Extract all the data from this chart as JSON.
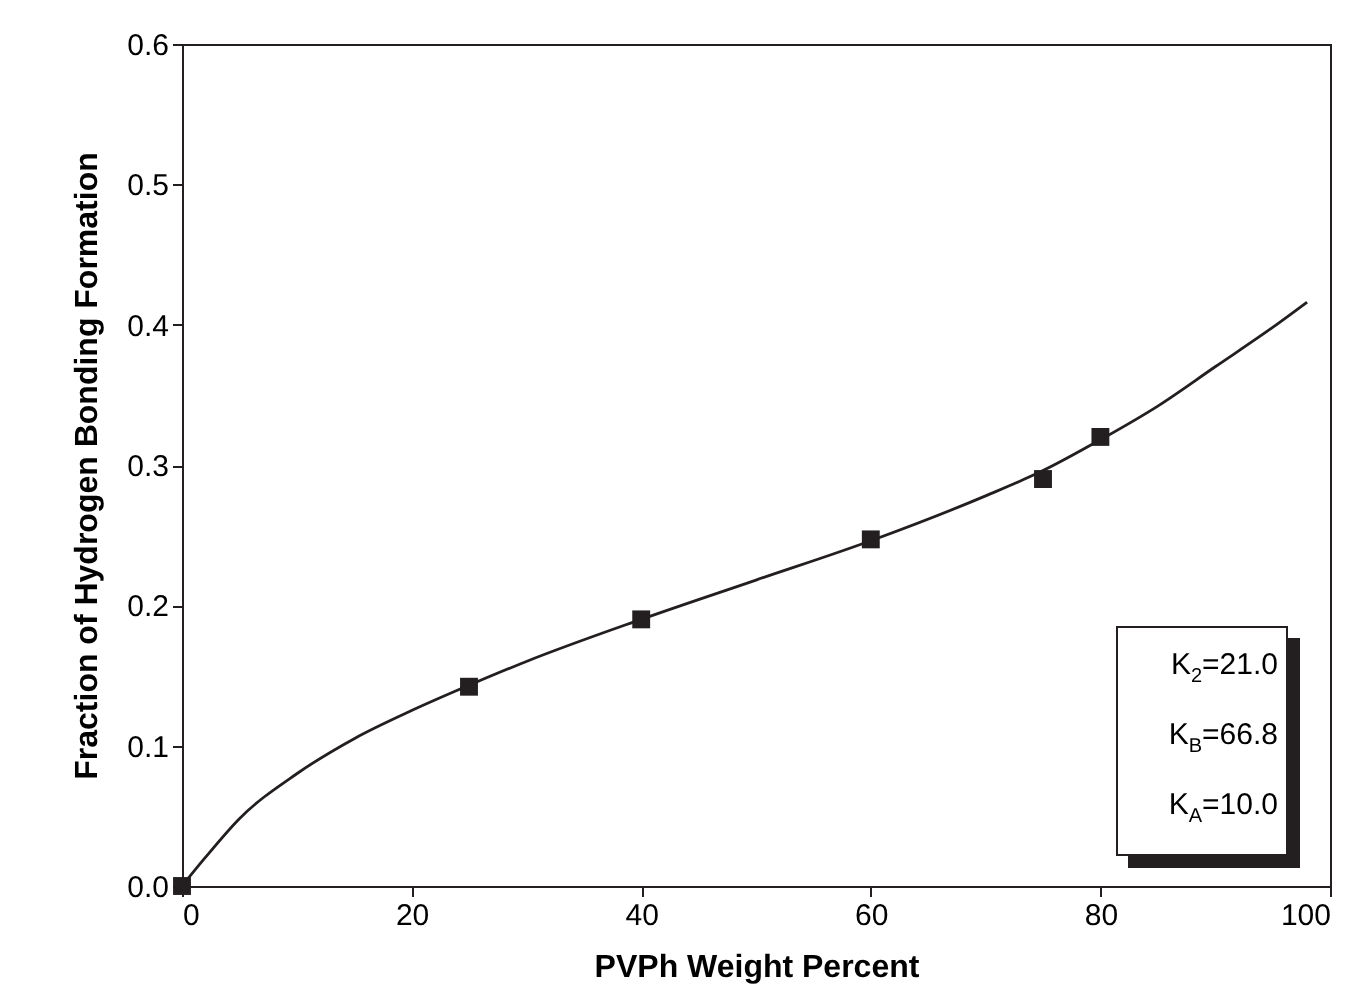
{
  "chart_data": {
    "type": "scatter",
    "xlabel": "PVPh Weight Percent",
    "ylabel": "Fraction of Hydrogen Bonding Formation",
    "xlim": [
      0,
      100
    ],
    "xticks": [
      0,
      20,
      40,
      60,
      80,
      100
    ],
    "ylim": [
      0,
      0.6
    ],
    "yticks": [
      {
        "value": 0,
        "label": "0.0"
      },
      0.1,
      0.2,
      0.3,
      0.4,
      0.5,
      0.6
    ],
    "grid": false,
    "series": [
      {
        "color": "#231f20",
        "marker": "square",
        "x": [
          0,
          25,
          40,
          60,
          75,
          80
        ],
        "values": [
          0,
          0.142,
          0.19,
          0.247,
          0.29,
          0.32
        ]
      },
      {
        "type": "line",
        "color": "#231f20",
        "marker": "none",
        "line_style": "solid",
        "x": [
          0,
          2,
          5,
          10,
          15,
          20,
          25,
          30,
          40,
          50,
          60,
          70,
          75,
          80,
          85,
          90,
          95,
          98
        ],
        "values": [
          0,
          0.02,
          0.048,
          0.08,
          0.105,
          0.125,
          0.143,
          0.16,
          0.19,
          0.218,
          0.246,
          0.278,
          0.296,
          0.318,
          0.342,
          0.37,
          0.398,
          0.416
        ]
      }
    ],
    "annotations": [
      "K$_{2}$=21.0",
      "K$_{B}$=66.8",
      "K$_{A}$=10.0"
    ]
  }
}
